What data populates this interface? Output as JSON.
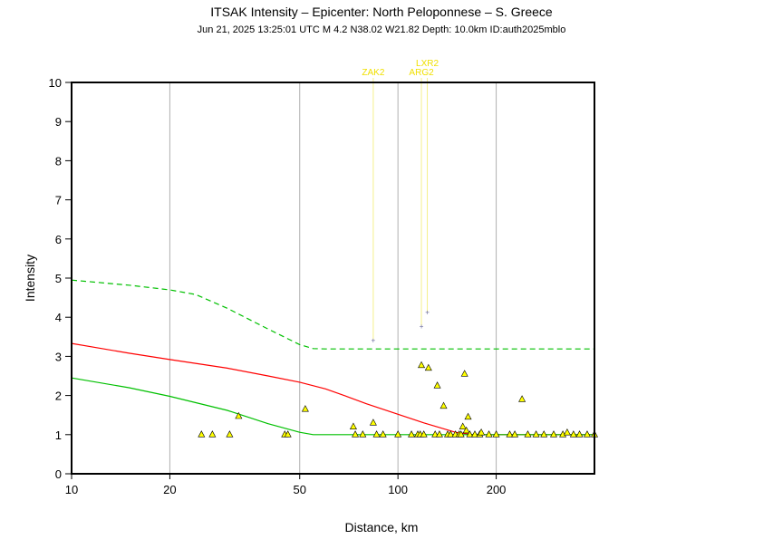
{
  "chart_data": {
    "type": "scatter",
    "title": "ITSAK Intensity –  Epicenter: North Peloponnese – S. Greece",
    "subtitle": "Jun 21, 2025 13:25:01 UTC   M 4.2   N38.02 W21.82   Depth: 10.0km   ID:auth2025mblo",
    "xlabel": "Distance, km",
    "ylabel": "Intensity",
    "x_scale": "log",
    "xlim": [
      10,
      400
    ],
    "ylim": [
      0,
      10
    ],
    "x_ticks": [
      10,
      20,
      50,
      100,
      200
    ],
    "y_ticks": [
      0,
      1,
      2,
      3,
      4,
      5,
      6,
      7,
      8,
      9,
      10
    ],
    "grid": true,
    "colors": {
      "median_curve": "#ff0000",
      "upper_curve": "#00c000",
      "lower_curve": "#00c000",
      "station_fill": "#ffff00",
      "station_label": "#f0e000",
      "station_line": "#f5f08a",
      "special_point": "#6a6aa0"
    },
    "curves": [
      {
        "role": "median",
        "style": "solid",
        "color": "#ff0000",
        "points": [
          [
            10,
            3.33
          ],
          [
            15,
            3.08
          ],
          [
            20,
            2.92
          ],
          [
            30,
            2.7
          ],
          [
            40,
            2.5
          ],
          [
            50,
            2.34
          ],
          [
            60,
            2.17
          ],
          [
            70,
            1.97
          ],
          [
            80,
            1.79
          ],
          [
            100,
            1.52
          ],
          [
            120,
            1.3
          ],
          [
            150,
            1.06
          ],
          [
            170,
            1.0
          ],
          [
            200,
            1.0
          ],
          [
            250,
            1.0
          ],
          [
            300,
            1.0
          ],
          [
            400,
            1.0
          ]
        ]
      },
      {
        "role": "upper",
        "style": "dashed",
        "color": "#00c000",
        "points": [
          [
            10,
            4.95
          ],
          [
            15,
            4.82
          ],
          [
            20,
            4.7
          ],
          [
            24,
            4.58
          ],
          [
            30,
            4.23
          ],
          [
            40,
            3.7
          ],
          [
            50,
            3.3
          ],
          [
            55,
            3.2
          ],
          [
            60,
            3.19
          ],
          [
            100,
            3.19
          ],
          [
            200,
            3.19
          ],
          [
            400,
            3.19
          ]
        ]
      },
      {
        "role": "lower",
        "style": "solid",
        "color": "#00c000",
        "points": [
          [
            10,
            2.45
          ],
          [
            15,
            2.2
          ],
          [
            20,
            1.98
          ],
          [
            30,
            1.62
          ],
          [
            40,
            1.28
          ],
          [
            50,
            1.06
          ],
          [
            55,
            1.0
          ],
          [
            60,
            1.0
          ],
          [
            100,
            1.0
          ],
          [
            200,
            1.0
          ],
          [
            400,
            1.0
          ]
        ]
      }
    ],
    "stations": [
      [
        25,
        1.0
      ],
      [
        27,
        1.0
      ],
      [
        30.5,
        1.0
      ],
      [
        32.5,
        1.47
      ],
      [
        45,
        1.0
      ],
      [
        46,
        1.0
      ],
      [
        52,
        1.65
      ],
      [
        73,
        1.2
      ],
      [
        74,
        1.0
      ],
      [
        78,
        1.0
      ],
      [
        84,
        1.3
      ],
      [
        86,
        1.0
      ],
      [
        90,
        1.0
      ],
      [
        100,
        1.0
      ],
      [
        110,
        1.0
      ],
      [
        115,
        1.0
      ],
      [
        117,
        1.0
      ],
      [
        118,
        2.77
      ],
      [
        120,
        1.0
      ],
      [
        124,
        2.7
      ],
      [
        130,
        1.0
      ],
      [
        132,
        2.25
      ],
      [
        134,
        1.0
      ],
      [
        138,
        1.73
      ],
      [
        142,
        1.0
      ],
      [
        145,
        1.0
      ],
      [
        150,
        1.0
      ],
      [
        154,
        1.0
      ],
      [
        156,
        1.0
      ],
      [
        158,
        1.2
      ],
      [
        160,
        2.55
      ],
      [
        162,
        1.1
      ],
      [
        164,
        1.45
      ],
      [
        166,
        1.0
      ],
      [
        172,
        1.0
      ],
      [
        178,
        1.0
      ],
      [
        180,
        1.05
      ],
      [
        190,
        1.0
      ],
      [
        200,
        1.0
      ],
      [
        220,
        1.0
      ],
      [
        228,
        1.0
      ],
      [
        240,
        1.9
      ],
      [
        250,
        1.0
      ],
      [
        265,
        1.0
      ],
      [
        280,
        1.0
      ],
      [
        300,
        1.0
      ],
      [
        320,
        1.0
      ],
      [
        330,
        1.05
      ],
      [
        345,
        1.0
      ],
      [
        360,
        1.0
      ],
      [
        380,
        1.0
      ],
      [
        400,
        1.0
      ]
    ],
    "special_stations": [
      {
        "label": "ZAK2",
        "x": 84,
        "y": 3.42
      },
      {
        "label": "ARG2",
        "x": 118,
        "y": 3.77
      },
      {
        "label": "LXR2",
        "x": 123,
        "y": 4.13
      }
    ]
  }
}
